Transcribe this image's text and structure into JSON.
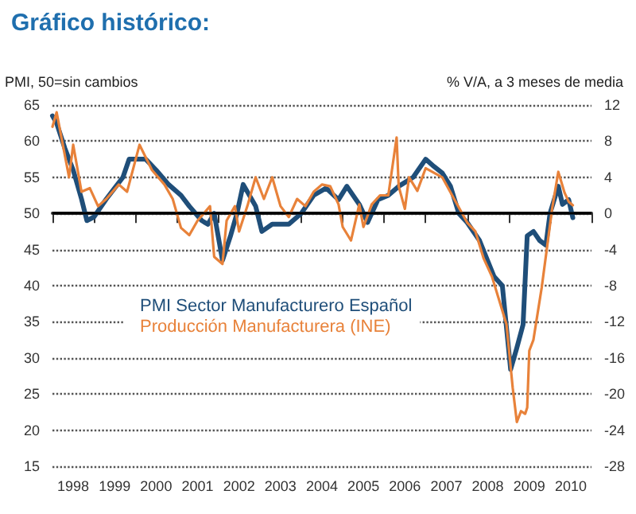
{
  "chart_data": {
    "type": "line",
    "title": "Gráfico histórico:",
    "ylabel": "PMI, 50=sin cambios",
    "y2label": "% V/A, a 3 meses de media",
    "xlim": [
      1998,
      2011
    ],
    "xticks": [
      {
        "value": 1998,
        "label": null
      },
      {
        "value": 1998.5,
        "label": "1998"
      },
      {
        "value": 1999,
        "label": null
      },
      {
        "value": 1999.5,
        "label": "1999"
      },
      {
        "value": 2000,
        "label": null
      },
      {
        "value": 2000.5,
        "label": "2000"
      },
      {
        "value": 2001,
        "label": null
      },
      {
        "value": 2001.5,
        "label": "2001"
      },
      {
        "value": 2002,
        "label": null
      },
      {
        "value": 2002.5,
        "label": "2002"
      },
      {
        "value": 2003,
        "label": null
      },
      {
        "value": 2003.5,
        "label": "2003"
      },
      {
        "value": 2004,
        "label": null
      },
      {
        "value": 2004.5,
        "label": "2004"
      },
      {
        "value": 2005,
        "label": null
      },
      {
        "value": 2005.5,
        "label": "2005"
      },
      {
        "value": 2006,
        "label": null
      },
      {
        "value": 2006.5,
        "label": "2006"
      },
      {
        "value": 2007,
        "label": null
      },
      {
        "value": 2007.5,
        "label": "2007"
      },
      {
        "value": 2008,
        "label": null
      },
      {
        "value": 2008.5,
        "label": "2008"
      },
      {
        "value": 2009,
        "label": null
      },
      {
        "value": 2009.5,
        "label": "2009"
      },
      {
        "value": 2010,
        "label": null
      },
      {
        "value": 2010.5,
        "label": "2010"
      },
      {
        "value": 2011,
        "label": null
      }
    ],
    "ylim": [
      15,
      65
    ],
    "yticks": [
      15,
      20,
      25,
      30,
      35,
      40,
      45,
      50,
      55,
      60,
      65
    ],
    "y2lim": [
      -28,
      12
    ],
    "y2ticks": [
      -28,
      -24,
      -20,
      -16,
      -12,
      -8,
      -4,
      0,
      4,
      8,
      12
    ],
    "grid": "y",
    "legend": "left",
    "marker": "none",
    "line_style": "solid",
    "ref_lines": [
      {
        "axis": "y",
        "value": 50,
        "color": "#000000",
        "line_style": "solid"
      }
    ],
    "series": [
      {
        "name": "PMI Sector Manufacturero Español",
        "color": "#1f4e79",
        "x": [
          1998.0,
          1998.1,
          1998.3,
          1998.5,
          1998.7,
          1998.83,
          1999.0,
          1999.3,
          1999.5,
          1999.7,
          1999.85,
          2000.0,
          2000.25,
          2000.5,
          2000.8,
          2001.1,
          2001.3,
          2001.6,
          2001.75,
          2001.9,
          2002.1,
          2002.3,
          2002.45,
          2002.6,
          2002.9,
          2003.05,
          2003.3,
          2003.5,
          2003.7,
          2004.0,
          2004.3,
          2004.6,
          2004.9,
          2005.1,
          2005.4,
          2005.6,
          2005.85,
          2006.1,
          2006.35,
          2006.7,
          2007.0,
          2007.2,
          2007.4,
          2007.6,
          2007.8,
          2008.0,
          2008.3,
          2008.65,
          2008.85,
          2009.05,
          2009.2,
          2009.35,
          2009.45,
          2009.6,
          2009.75,
          2009.9,
          2010.0,
          2010.2,
          2010.3,
          2010.45,
          2010.55
        ],
        "values": [
          63.5,
          62.5,
          59,
          56,
          52,
          49,
          49.5,
          52,
          53.5,
          55,
          57.5,
          57.5,
          57.5,
          56,
          54,
          52.5,
          51,
          49,
          48.5,
          50,
          43.5,
          47,
          50,
          54,
          51,
          47.5,
          48.5,
          48.5,
          48.5,
          50,
          52.5,
          53.5,
          51.9,
          53.75,
          51.25,
          48.75,
          51.9,
          52.5,
          53.75,
          55,
          57.5,
          56.5,
          55.6,
          53.75,
          50,
          48.75,
          46.25,
          41.25,
          40,
          28.4,
          31.4,
          34.6,
          46.9,
          47.5,
          46.25,
          45.6,
          50,
          53.75,
          51.25,
          51.9,
          49.4
        ]
      },
      {
        "name": "Producción Manufacturera (INE)",
        "color": "#e8823a",
        "axis": "y2",
        "x": [
          1998.0,
          1998.1,
          1998.4,
          1998.5,
          1998.7,
          1998.9,
          1999.1,
          1999.3,
          1999.6,
          1999.8,
          2000.1,
          2000.4,
          2000.7,
          2000.9,
          2001.1,
          2001.3,
          2001.5,
          2001.8,
          2001.9,
          2002.1,
          2002.2,
          2002.4,
          2002.5,
          2002.7,
          2002.9,
          2003.1,
          2003.3,
          2003.5,
          2003.7,
          2003.9,
          2004.1,
          2004.3,
          2004.5,
          2004.7,
          2004.9,
          2005.0,
          2005.2,
          2005.4,
          2005.5,
          2005.7,
          2005.9,
          2006.1,
          2006.3,
          2006.35,
          2006.5,
          2006.6,
          2006.8,
          2007.0,
          2007.4,
          2007.7,
          2008.0,
          2008.2,
          2008.4,
          2008.6,
          2008.8,
          2008.95,
          2009.1,
          2009.2,
          2009.3,
          2009.4,
          2009.45,
          2009.5,
          2009.6,
          2009.8,
          2009.95,
          2010.05,
          2010.2,
          2010.35,
          2010.45,
          2010.55
        ],
        "values": [
          9.6,
          11.2,
          4,
          7.6,
          2.4,
          2.8,
          0.8,
          1.6,
          3.2,
          2.4,
          7.6,
          4.8,
          3.2,
          1.6,
          -1.6,
          -2.4,
          -0.8,
          0.8,
          -4.8,
          -5.6,
          -0.8,
          0.8,
          -2,
          0.8,
          4,
          1.6,
          4,
          0.8,
          -0.4,
          1.6,
          0.8,
          2.4,
          3.2,
          3,
          1,
          -1.5,
          -3,
          1,
          -1.5,
          1,
          2,
          2,
          8.4,
          3,
          0.5,
          4,
          2.5,
          5,
          4,
          1.5,
          -1,
          -2,
          -5,
          -7,
          -10,
          -12.3,
          -19.3,
          -23.1,
          -21.9,
          -22.2,
          -21.5,
          -15.2,
          -14,
          -8.2,
          -3,
          0.5,
          4.6,
          2.3,
          1.3,
          0.9
        ]
      }
    ]
  }
}
